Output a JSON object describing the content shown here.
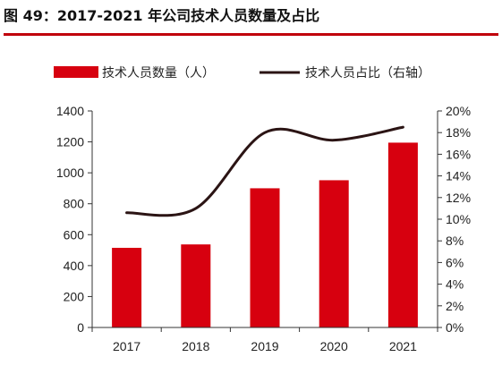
{
  "header": {
    "title": "图 49：2017-2021 年公司技术人员数量及占比"
  },
  "colors": {
    "accent": "#c0000b",
    "bar": "#d7000f",
    "line": "#2b1414"
  },
  "chart_data": {
    "type": "bar",
    "categories": [
      "2017",
      "2018",
      "2019",
      "2020",
      "2021"
    ],
    "series": [
      {
        "name": "技术人员数量（人）",
        "type": "bar",
        "axis": "left",
        "values": [
          515,
          537,
          900,
          952,
          1195
        ]
      },
      {
        "name": "技术人员占比（右轴）",
        "type": "line",
        "axis": "right",
        "values": [
          10.6,
          11.0,
          18.0,
          17.3,
          18.5
        ]
      }
    ],
    "y_left": {
      "lim": [
        0,
        1400
      ],
      "ticks": [
        "0",
        "200",
        "400",
        "600",
        "800",
        "1000",
        "1200",
        "1400"
      ]
    },
    "y_right": {
      "lim": [
        0,
        20
      ],
      "ticks": [
        "0%",
        "2%",
        "4%",
        "6%",
        "8%",
        "10%",
        "12%",
        "14%",
        "16%",
        "18%",
        "20%"
      ]
    },
    "legend_position": "top",
    "grid": false
  }
}
